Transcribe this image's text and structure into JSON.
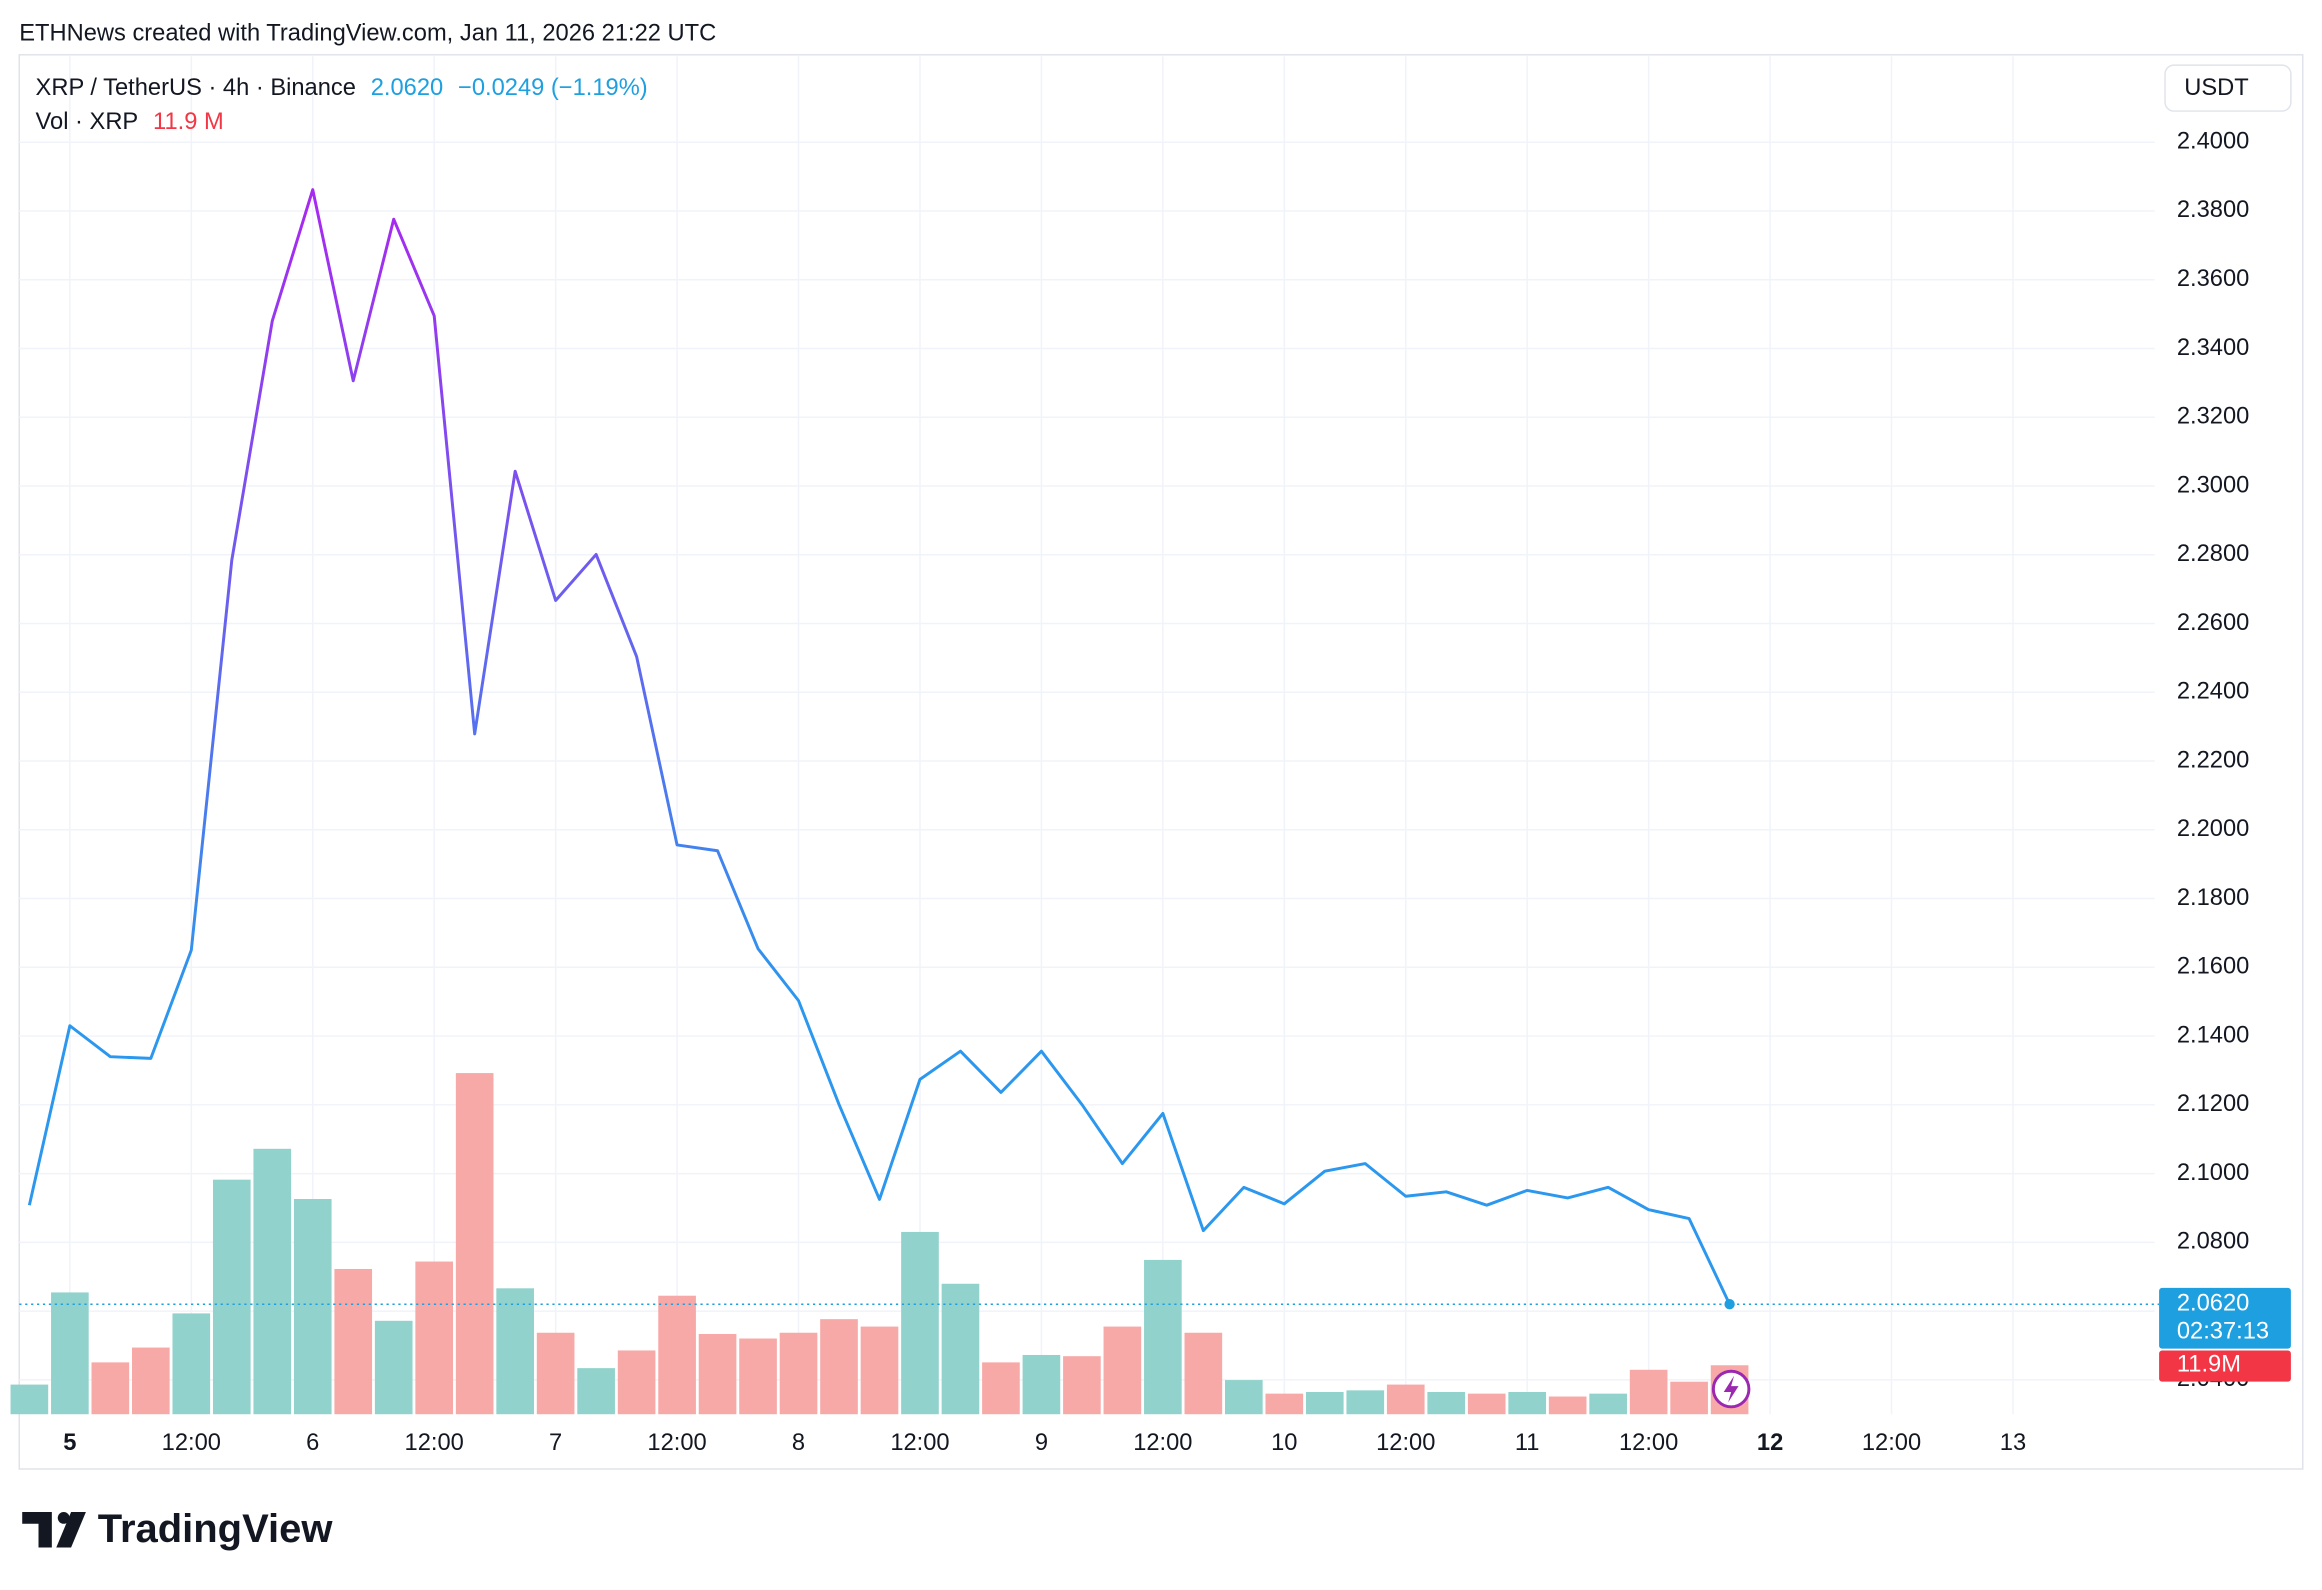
{
  "header": {
    "text": "ETHNews created with TradingView.com, Jan 11, 2026 21:22 UTC"
  },
  "chart_data": {
    "type": "line",
    "currency_button": "USDT",
    "x": [
      -4,
      0,
      4,
      8,
      12,
      16,
      20,
      24,
      28,
      32,
      36,
      40,
      44,
      48,
      52,
      56,
      60,
      64,
      68,
      72,
      76,
      80,
      84,
      88,
      92,
      96,
      100,
      104,
      108,
      112,
      116,
      120,
      124,
      128,
      132,
      136,
      140,
      144,
      148,
      152,
      156,
      160,
      164
    ],
    "xlim": [
      -5,
      206
    ],
    "xticks": [
      {
        "value": 0,
        "label": "5",
        "bold": true
      },
      {
        "value": 12,
        "label": "12:00"
      },
      {
        "value": 24,
        "label": "6"
      },
      {
        "value": 36,
        "label": "12:00"
      },
      {
        "value": 48,
        "label": "7"
      },
      {
        "value": 60,
        "label": "12:00"
      },
      {
        "value": 72,
        "label": "8"
      },
      {
        "value": 84,
        "label": "12:00"
      },
      {
        "value": 96,
        "label": "9"
      },
      {
        "value": 108,
        "label": "12:00"
      },
      {
        "value": 120,
        "label": "10"
      },
      {
        "value": 132,
        "label": "12:00"
      },
      {
        "value": 144,
        "label": "11"
      },
      {
        "value": 156,
        "label": "12:00"
      },
      {
        "value": 168,
        "label": "12",
        "bold": true
      },
      {
        "value": 180,
        "label": "12:00"
      },
      {
        "value": 192,
        "label": "13"
      }
    ],
    "ylim": [
      2.03,
      2.425
    ],
    "yticks": [
      {
        "value": 2.04,
        "label": "2.0400"
      },
      {
        "value": 2.06,
        "label": "2.0600"
      },
      {
        "value": 2.08,
        "label": "2.0800"
      },
      {
        "value": 2.1,
        "label": "2.1000"
      },
      {
        "value": 2.12,
        "label": "2.1200"
      },
      {
        "value": 2.14,
        "label": "2.1400"
      },
      {
        "value": 2.16,
        "label": "2.1600"
      },
      {
        "value": 2.18,
        "label": "2.1800"
      },
      {
        "value": 2.2,
        "label": "2.2000"
      },
      {
        "value": 2.22,
        "label": "2.2200"
      },
      {
        "value": 2.24,
        "label": "2.2400"
      },
      {
        "value": 2.26,
        "label": "2.2600"
      },
      {
        "value": 2.28,
        "label": "2.2800"
      },
      {
        "value": 2.3,
        "label": "2.3000"
      },
      {
        "value": 2.32,
        "label": "2.3200"
      },
      {
        "value": 2.34,
        "label": "2.3400"
      },
      {
        "value": 2.36,
        "label": "2.3600"
      },
      {
        "value": 2.38,
        "label": "2.3800"
      },
      {
        "value": 2.4,
        "label": "2.4000"
      }
    ],
    "grid": true,
    "series": [
      {
        "name": "XRP / TetherUS · 4h · Binance",
        "gradient": [
          "#a62af0",
          "#2b97ee"
        ],
        "color": "#1e9fe0",
        "last_label": "2.0620",
        "change_label": "−0.0249 (−1.19%)",
        "countdown": "02:37:13",
        "values": [
          2.0908,
          2.143,
          2.134,
          2.1335,
          2.165,
          2.2784,
          2.348,
          2.3862,
          2.3306,
          2.3776,
          2.3495,
          2.2279,
          2.3043,
          2.2667,
          2.2801,
          2.2504,
          2.1956,
          2.1939,
          2.1654,
          2.1503,
          2.1201,
          2.0925,
          2.1274,
          2.1356,
          2.1236,
          2.1356,
          2.1201,
          2.1029,
          2.1175,
          2.0834,
          2.096,
          2.0912,
          2.1007,
          2.1029,
          2.0934,
          2.0947,
          2.0908,
          2.0951,
          2.0929,
          2.096,
          2.0895,
          2.0869,
          2.062
        ]
      }
    ],
    "volume": {
      "name": "Vol · XRP",
      "legend_label": "11.9 M",
      "axis_label": "11.9M",
      "label_color": "#f23645",
      "ylim": [
        0,
        330
      ],
      "values": [
        7.2,
        29.6,
        12.6,
        16.2,
        24.5,
        57.0,
        64.5,
        52.3,
        35.3,
        22.7,
        37.1,
        82.9,
        30.6,
        19.8,
        11.2,
        15.5,
        28.8,
        19.5,
        18.4,
        19.8,
        23.1,
        21.3,
        44.3,
        31.7,
        12.6,
        14.4,
        14.1,
        21.3,
        37.5,
        19.8,
        8.3,
        5.0,
        5.4,
        5.8,
        7.2,
        5.4,
        5.0,
        5.4,
        4.3,
        5.0,
        10.8,
        7.9,
        11.9
      ],
      "colors": [
        "#92d2cc",
        "#92d2cc",
        "#f7a9a7",
        "#f7a9a7",
        "#92d2cc",
        "#92d2cc",
        "#92d2cc",
        "#92d2cc",
        "#f7a9a7",
        "#92d2cc",
        "#f7a9a7",
        "#f7a9a7",
        "#92d2cc",
        "#f7a9a7",
        "#92d2cc",
        "#f7a9a7",
        "#f7a9a7",
        "#f7a9a7",
        "#f7a9a7",
        "#f7a9a7",
        "#f7a9a7",
        "#f7a9a7",
        "#92d2cc",
        "#92d2cc",
        "#f7a9a7",
        "#92d2cc",
        "#f7a9a7",
        "#f7a9a7",
        "#92d2cc",
        "#f7a9a7",
        "#92d2cc",
        "#f7a9a7",
        "#92d2cc",
        "#92d2cc",
        "#f7a9a7",
        "#92d2cc",
        "#f7a9a7",
        "#92d2cc",
        "#f7a9a7",
        "#92d2cc",
        "#f7a9a7",
        "#f7a9a7",
        "#f7a9a7"
      ]
    }
  },
  "footer": {
    "brand": "TradingView"
  }
}
